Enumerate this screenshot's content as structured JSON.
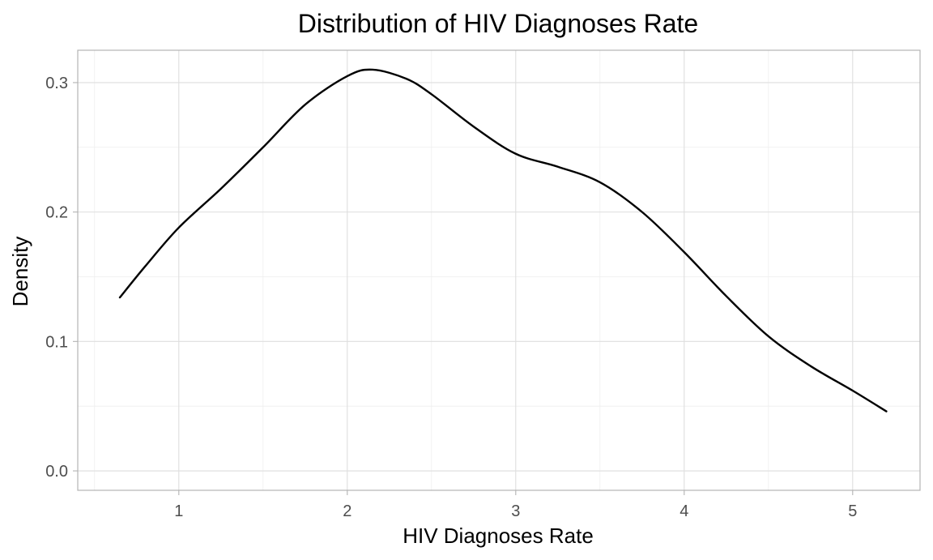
{
  "chart_data": {
    "type": "line",
    "title": "Distribution of HIV Diagnoses Rate",
    "xlabel": "HIV Diagnoses Rate",
    "ylabel": "Density",
    "xlim": [
      0.4,
      5.4
    ],
    "ylim": [
      -0.015,
      0.325
    ],
    "x_ticks": [
      1,
      2,
      3,
      4,
      5
    ],
    "x_tick_labels": [
      "1",
      "2",
      "3",
      "4",
      "5"
    ],
    "y_ticks": [
      0.0,
      0.1,
      0.2,
      0.3
    ],
    "y_tick_labels": [
      "0.0",
      "0.1",
      "0.2",
      "0.3"
    ],
    "grid": true,
    "legend": "none",
    "line_color": "#000000",
    "series": [
      {
        "x": [
          0.65,
          0.8,
          1.0,
          1.25,
          1.5,
          1.75,
          2.0,
          2.15,
          2.35,
          2.5,
          2.75,
          3.0,
          3.25,
          3.5,
          3.75,
          4.0,
          4.25,
          4.5,
          4.75,
          5.0,
          5.2
        ],
        "values": [
          0.134,
          0.158,
          0.188,
          0.218,
          0.25,
          0.283,
          0.305,
          0.31,
          0.303,
          0.291,
          0.266,
          0.245,
          0.235,
          0.223,
          0.2,
          0.169,
          0.135,
          0.104,
          0.081,
          0.062,
          0.046
        ]
      }
    ]
  }
}
